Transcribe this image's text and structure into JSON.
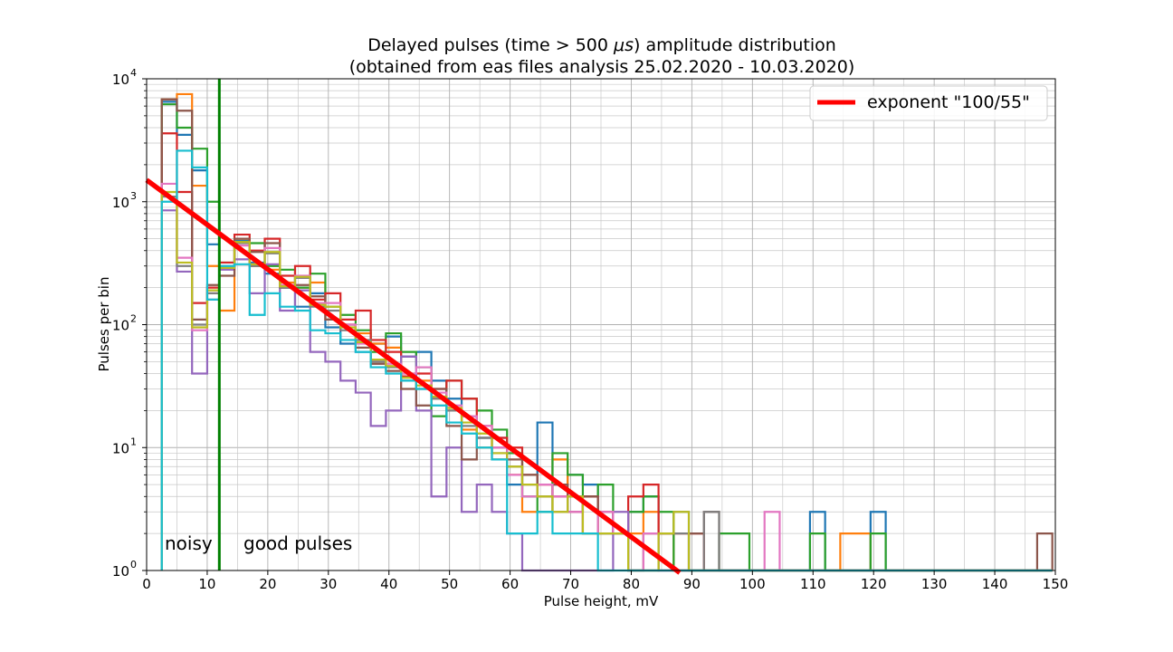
{
  "chart_data": {
    "type": "step-histogram",
    "title_line1": "Delayed pulses (time > 500 ",
    "title_mu": "μs",
    "title_line1_end": ") amplitude distribution",
    "title_line2": "(obtained from eas files analysis 25.02.2020 - 10.03.2020)",
    "xlabel": "Pulse height, mV",
    "ylabel": "Pulses per bin",
    "xlim": [
      0,
      150
    ],
    "ylim": [
      1,
      10000
    ],
    "yscale": "log",
    "grid": "major and minor",
    "x_ticks": [
      "0",
      "10",
      "20",
      "30",
      "40",
      "50",
      "60",
      "70",
      "80",
      "90",
      "100",
      "110",
      "120",
      "130",
      "140",
      "150"
    ],
    "y_ticks": [
      {
        "base": "10",
        "exp": "0",
        "value": 1
      },
      {
        "base": "10",
        "exp": "1",
        "value": 10
      },
      {
        "base": "10",
        "exp": "2",
        "value": 100
      },
      {
        "base": "10",
        "exp": "3",
        "value": 1000
      },
      {
        "base": "10",
        "exp": "4",
        "value": 10000
      }
    ],
    "legend": {
      "position": "upper-right",
      "label": "exponent \"100/55\"",
      "color": "#ff0000"
    },
    "annotations": {
      "noisy": "noisy",
      "good": "good pulses"
    },
    "threshold_x": 12,
    "threshold_color": "#008000",
    "bin_edges": [
      2.5,
      5,
      7.5,
      10,
      12,
      14.5,
      17,
      19.5,
      22,
      24.5,
      27,
      29.5,
      32,
      34.5,
      37,
      39.5,
      42,
      44.5,
      47,
      49.5,
      52,
      54.5,
      57,
      59.5,
      62,
      64.5,
      67,
      69.5,
      72,
      74.5,
      77,
      79.5,
      82,
      84.5,
      87,
      89.5,
      92,
      94.5,
      97,
      99.5,
      102,
      104.5,
      107,
      109.5,
      112,
      114.5,
      117,
      119.5,
      122,
      124.5,
      127,
      129.5,
      132,
      134.5,
      137,
      139.5,
      142,
      144.5,
      147,
      149.5
    ],
    "fit_line": {
      "name": "exponent \"100/55\"",
      "x": [
        0,
        88
      ],
      "y": [
        1500,
        0.96
      ]
    },
    "series": [
      {
        "name": "",
        "color": "#1f77b4",
        "values": [
          6500,
          3500,
          1800,
          450,
          300,
          480,
          320,
          260,
          200,
          140,
          180,
          95,
          70,
          60,
          70,
          80,
          55,
          60,
          35,
          25,
          18,
          12,
          12,
          5,
          4,
          16,
          5,
          6,
          5,
          3,
          2,
          3,
          4,
          2,
          3,
          1,
          1,
          1,
          1,
          1,
          1,
          1,
          1,
          3,
          1,
          1,
          1,
          3,
          1,
          1,
          1,
          1,
          1,
          1,
          1,
          1,
          1,
          1,
          1
        ]
      },
      {
        "name": "",
        "color": "#ff7f0e",
        "values": [
          6800,
          7500,
          1350,
          300,
          130,
          500,
          300,
          280,
          220,
          200,
          220,
          110,
          100,
          85,
          70,
          65,
          40,
          35,
          25,
          20,
          14,
          10,
          8,
          6,
          3,
          3,
          8,
          4,
          2,
          3,
          2,
          2,
          3,
          2,
          1,
          1,
          1,
          1,
          1,
          1,
          1,
          1,
          1,
          1,
          1,
          2,
          2,
          1,
          1,
          1,
          1,
          1,
          1,
          1,
          1,
          1,
          1,
          1,
          1
        ]
      },
      {
        "name": "",
        "color": "#2ca02c",
        "values": [
          6200,
          4000,
          2700,
          1000,
          320,
          470,
          460,
          300,
          280,
          200,
          260,
          140,
          120,
          90,
          60,
          85,
          60,
          45,
          18,
          35,
          25,
          20,
          14,
          9,
          4,
          3,
          9,
          6,
          4,
          5,
          2,
          3,
          4,
          3,
          1,
          1,
          1,
          2,
          2,
          1,
          1,
          1,
          1,
          2,
          1,
          1,
          1,
          2,
          1,
          1,
          1,
          1,
          1,
          1,
          1,
          1,
          1,
          1,
          1
        ]
      },
      {
        "name": "",
        "color": "#d62728",
        "values": [
          3600,
          1200,
          150,
          200,
          320,
          540,
          400,
          500,
          250,
          300,
          160,
          180,
          110,
          130,
          75,
          60,
          38,
          40,
          30,
          35,
          25,
          15,
          12,
          10,
          6,
          5,
          4,
          3,
          4,
          3,
          2,
          4,
          5,
          2,
          2,
          2,
          1,
          1,
          1,
          1,
          1,
          1,
          1,
          1,
          1,
          1,
          1,
          1,
          1,
          1,
          1,
          1,
          1,
          1,
          1,
          1,
          1,
          1,
          1
        ]
      },
      {
        "name": "",
        "color": "#9467bd",
        "values": [
          850,
          270,
          40,
          160,
          280,
          340,
          180,
          310,
          130,
          190,
          60,
          50,
          35,
          28,
          15,
          20,
          55,
          20,
          4,
          10,
          3,
          5,
          3,
          2,
          1,
          1,
          1,
          1,
          1,
          1,
          3,
          1,
          1,
          1,
          1,
          1,
          1,
          1,
          1,
          1,
          1,
          1,
          1,
          1,
          1,
          1,
          1,
          1,
          1,
          1,
          1,
          1,
          1,
          1,
          1,
          1,
          1,
          1,
          1
        ]
      },
      {
        "name": "",
        "color": "#8c564b",
        "values": [
          6800,
          5500,
          110,
          210,
          250,
          500,
          390,
          460,
          200,
          210,
          170,
          110,
          100,
          65,
          48,
          42,
          30,
          22,
          30,
          15,
          8,
          12,
          10,
          8,
          6,
          4,
          5,
          3,
          4,
          2,
          2,
          1,
          2,
          1,
          1,
          2,
          3,
          1,
          1,
          1,
          1,
          1,
          1,
          1,
          1,
          1,
          1,
          1,
          1,
          1,
          1,
          1,
          1,
          1,
          1,
          1,
          1,
          1,
          2
        ]
      },
      {
        "name": "",
        "color": "#e377c2",
        "values": [
          1400,
          350,
          90,
          180,
          300,
          440,
          310,
          420,
          210,
          250,
          150,
          150,
          100,
          70,
          50,
          48,
          40,
          45,
          28,
          22,
          18,
          15,
          10,
          6,
          4,
          5,
          4,
          3,
          2,
          3,
          2,
          1,
          2,
          1,
          1,
          1,
          1,
          1,
          1,
          1,
          3,
          1,
          1,
          1,
          1,
          1,
          1,
          1,
          1,
          1,
          1,
          1,
          1,
          1,
          1,
          1,
          1,
          1,
          1
        ]
      },
      {
        "name": "",
        "color": "#7f7f7f",
        "values": [
          1100,
          300,
          100,
          180,
          290,
          460,
          300,
          380,
          200,
          240,
          140,
          130,
          90,
          75,
          50,
          45,
          35,
          30,
          25,
          20,
          15,
          12,
          9,
          7,
          5,
          4,
          3,
          4,
          2,
          2,
          2,
          1,
          1,
          2,
          2,
          1,
          3,
          1,
          1,
          1,
          1,
          1,
          1,
          1,
          1,
          1,
          1,
          1,
          1,
          1,
          1,
          1,
          1,
          1,
          1,
          1,
          1,
          1,
          1
        ]
      },
      {
        "name": "",
        "color": "#bcbd22",
        "values": [
          1200,
          320,
          95,
          190,
          290,
          470,
          310,
          390,
          205,
          245,
          145,
          140,
          95,
          72,
          52,
          46,
          37,
          32,
          26,
          21,
          16,
          13,
          9,
          7,
          5,
          4,
          3,
          4,
          2,
          2,
          2,
          1,
          1,
          2,
          3,
          1,
          1,
          1,
          1,
          1,
          1,
          1,
          1,
          1,
          1,
          1,
          1,
          1,
          1,
          1,
          1,
          1,
          1,
          1,
          1,
          1,
          1,
          1,
          1
        ]
      },
      {
        "name": "",
        "color": "#17becf",
        "values": [
          1000,
          2600,
          1900,
          160,
          300,
          310,
          120,
          180,
          140,
          130,
          90,
          85,
          75,
          60,
          45,
          40,
          35,
          30,
          22,
          16,
          13,
          10,
          8,
          2,
          2,
          3,
          2,
          2,
          2,
          1,
          1,
          1,
          1,
          1,
          1,
          1,
          1,
          1,
          1,
          1,
          1,
          1,
          1,
          1,
          1,
          1,
          1,
          1,
          1,
          1,
          1,
          1,
          1,
          1,
          1,
          1,
          1,
          1,
          1
        ]
      }
    ]
  }
}
